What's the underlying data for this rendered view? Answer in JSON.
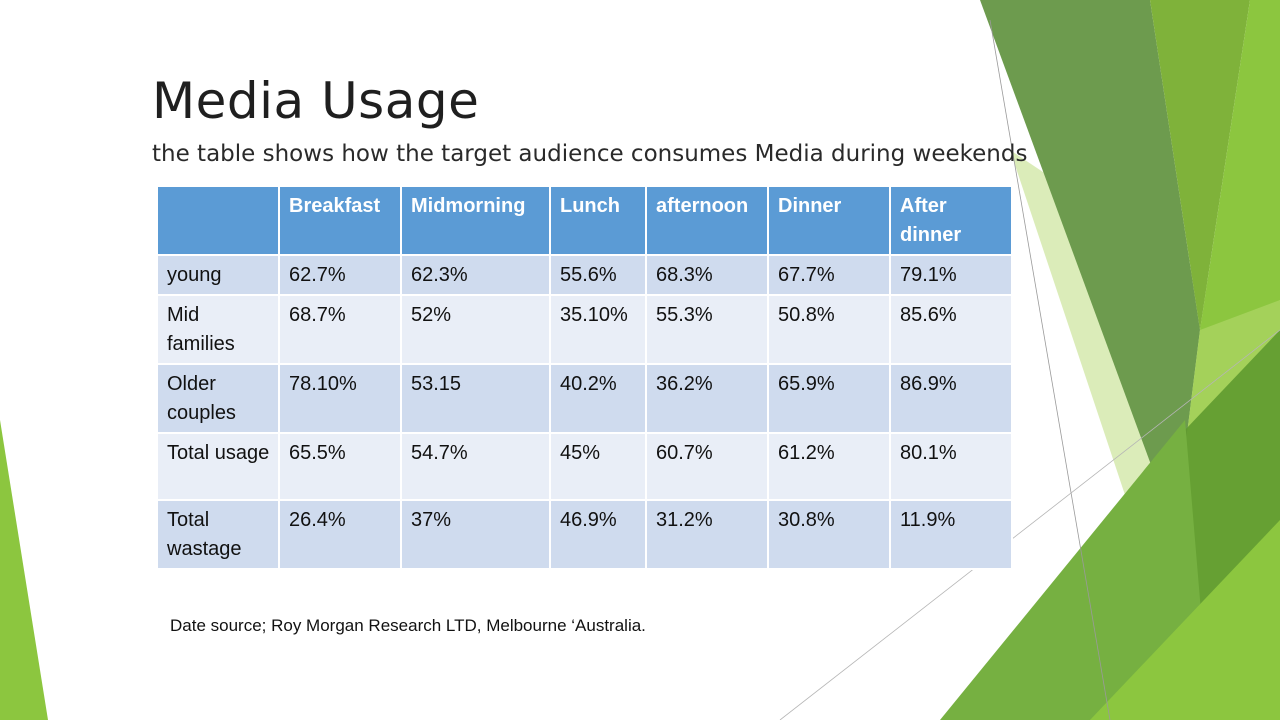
{
  "slide": {
    "title": "Media Usage",
    "subtitle": "the table shows how the target audience consumes Media during weekends",
    "source": "Date source; Roy Morgan Research LTD, Melbourne ‘Australia."
  },
  "table": {
    "headers": [
      "",
      "Breakfast",
      "Midmorning",
      "Lunch",
      "afternoon",
      "Dinner",
      "After dinner"
    ],
    "rows": [
      {
        "label": "young",
        "values": [
          "62.7%",
          "62.3%",
          "55.6%",
          "68.3%",
          "67.7%",
          "79.1%"
        ]
      },
      {
        "label": "Mid families",
        "values": [
          "68.7%",
          "52%",
          "35.10%",
          "55.3%",
          "50.8%",
          "85.6%"
        ]
      },
      {
        "label": "Older couples",
        "values": [
          "78.10%",
          "53.15",
          "40.2%",
          "36.2%",
          "65.9%",
          "86.9%"
        ]
      },
      {
        "label": "Total usage",
        "values": [
          "65.5%",
          "54.7%",
          "45%",
          "60.7%",
          "61.2%",
          "80.1%"
        ]
      },
      {
        "label": "Total wastage",
        "values": [
          "26.4%",
          "37%",
          "46.9%",
          "31.2%",
          "30.8%",
          "11.9%"
        ]
      }
    ]
  },
  "theme": {
    "header_bg": "#5b9bd5",
    "row_odd_bg": "#cfdbee",
    "row_even_bg": "#e9eef7",
    "accent_greens": [
      "#8cc63f",
      "#6a9a48",
      "#4e8b2a",
      "#cfe5a4",
      "#9ccc4a"
    ]
  }
}
